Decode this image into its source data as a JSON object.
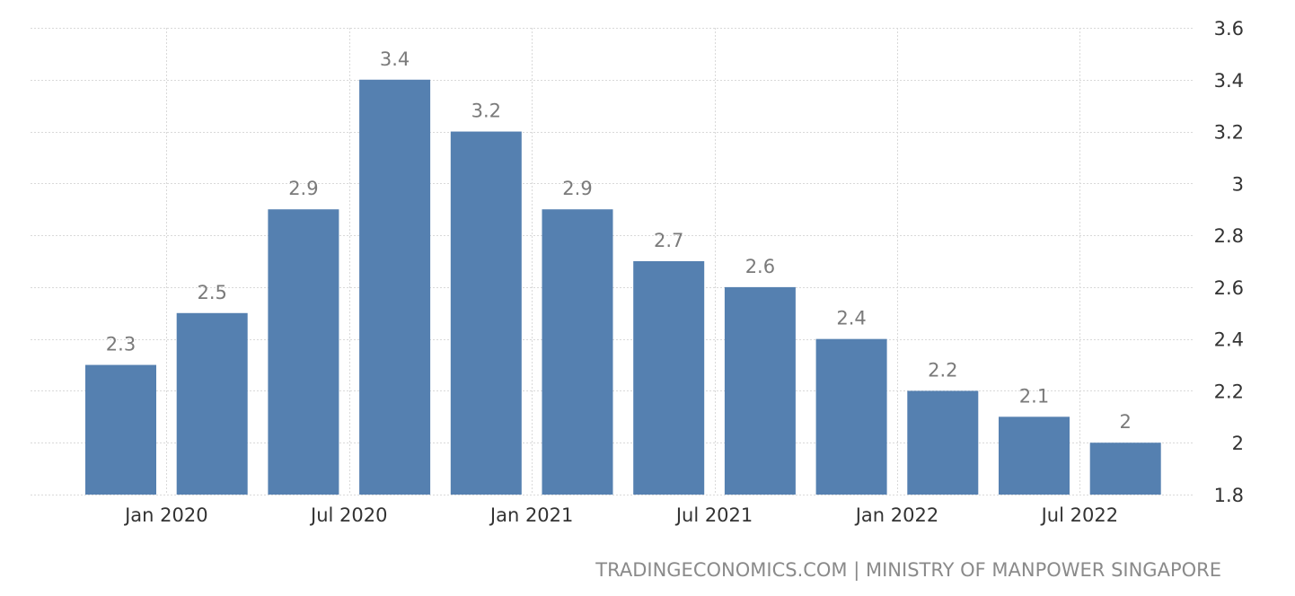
{
  "chart_data": {
    "type": "bar",
    "title": "",
    "xlabel": "",
    "ylabel": "",
    "ylim": [
      1.8,
      3.6
    ],
    "yticks": [
      1.8,
      2,
      2.2,
      2.4,
      2.6,
      2.8,
      3,
      3.2,
      3.4,
      3.6
    ],
    "y_axis_position": "right",
    "grid": true,
    "legend": "none",
    "bar_color": "#5580b0",
    "categories": [
      "Q4 2019",
      "Q1 2020",
      "Q2 2020",
      "Q3 2020",
      "Q4 2020",
      "Q1 2021",
      "Q2 2021",
      "Q3 2021",
      "Q4 2021",
      "Q1 2022",
      "Q2 2022",
      "Q3 2022"
    ],
    "values": [
      2.3,
      2.5,
      2.9,
      3.4,
      3.2,
      2.9,
      2.7,
      2.6,
      2.4,
      2.2,
      2.1,
      2
    ],
    "data_labels": [
      "2.3",
      "2.5",
      "2.9",
      "3.4",
      "3.2",
      "2.9",
      "2.7",
      "2.6",
      "2.4",
      "2.2",
      "2.1",
      "2"
    ],
    "x_tick_labels": [
      {
        "label": "Jan 2020",
        "between": [
          0,
          1
        ]
      },
      {
        "label": "Jul 2020",
        "between": [
          2,
          3
        ]
      },
      {
        "label": "Jan 2021",
        "between": [
          4,
          5
        ]
      },
      {
        "label": "Jul 2021",
        "between": [
          6,
          7
        ]
      },
      {
        "label": "Jan 2022",
        "between": [
          8,
          9
        ]
      },
      {
        "label": "Jul 2022",
        "between": [
          10,
          11
        ]
      }
    ]
  },
  "source": "TRADINGECONOMICS.COM | MINISTRY OF MANPOWER SINGAPORE"
}
